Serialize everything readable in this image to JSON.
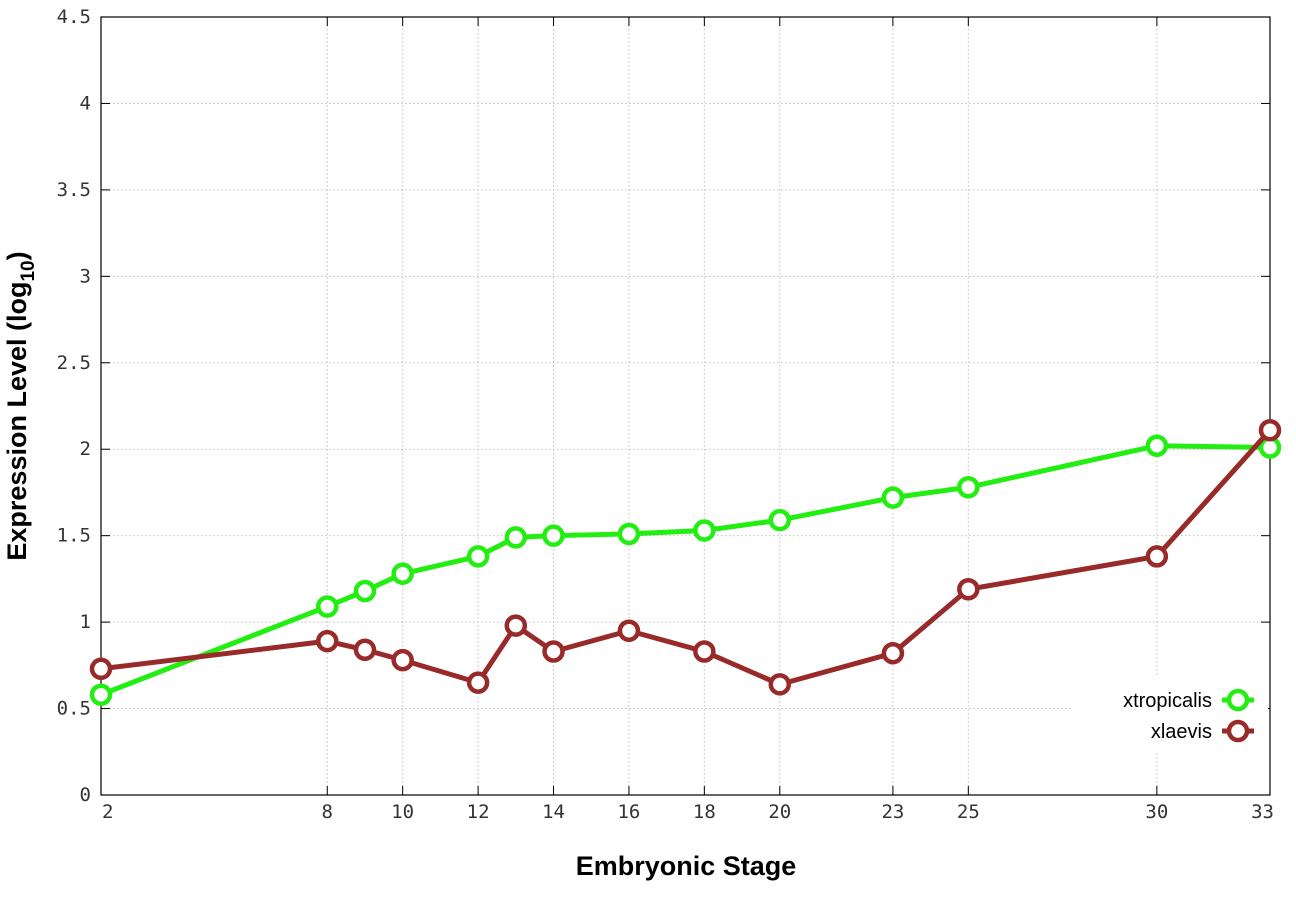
{
  "chart_data": {
    "type": "line",
    "xlabel": "Embryonic Stage",
    "ylabel_main": "Expression Level (log",
    "ylabel_sub": "10",
    "ylabel_close": ")",
    "x": [
      2,
      8,
      9,
      10,
      12,
      13,
      14,
      16,
      18,
      20,
      23,
      25,
      30,
      33
    ],
    "x_tick_labels": [
      "2",
      "8",
      "10",
      "12",
      "14",
      "16",
      "18",
      "20",
      "23",
      "25",
      "30",
      "33"
    ],
    "x_tick_values": [
      2,
      8,
      10,
      12,
      14,
      16,
      18,
      20,
      23,
      25,
      30,
      33
    ],
    "xlim": [
      2,
      33
    ],
    "ylim": [
      0,
      4.5
    ],
    "y_tick_labels": [
      "0",
      "0.5",
      "1",
      "1.5",
      "2",
      "2.5",
      "3",
      "3.5",
      "4",
      "4.5"
    ],
    "y_tick_values": [
      0,
      0.5,
      1,
      1.5,
      2,
      2.5,
      3,
      3.5,
      4,
      4.5
    ],
    "grid": true,
    "legend_position": "bottom-right",
    "series": [
      {
        "name": "xtropicalis",
        "color": "#22ee11",
        "values": [
          0.58,
          1.09,
          1.18,
          1.28,
          1.38,
          1.49,
          1.5,
          1.51,
          1.53,
          1.59,
          1.72,
          1.78,
          2.02,
          2.01
        ]
      },
      {
        "name": "xlaevis",
        "color": "#992a2a",
        "values": [
          0.73,
          0.89,
          0.84,
          0.78,
          0.65,
          0.98,
          0.83,
          0.95,
          0.83,
          0.64,
          0.82,
          1.19,
          1.38,
          2.11
        ]
      }
    ]
  }
}
